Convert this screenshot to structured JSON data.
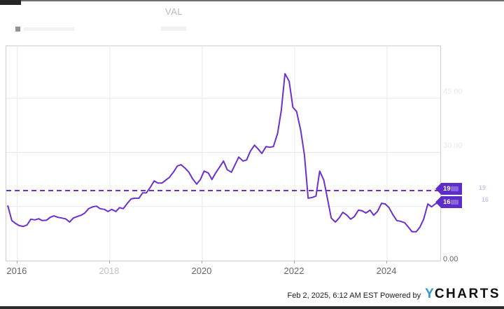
{
  "header": {
    "val_column_label": "VAL"
  },
  "axes": {
    "y_ticks": [
      {
        "label": "45.00",
        "value": 45,
        "faded": true
      },
      {
        "label": "30.00",
        "value": 30,
        "faded": true
      },
      {
        "label": "0.00",
        "value": 0,
        "faded": false
      }
    ],
    "x_ticks": [
      {
        "label": "2016",
        "year": 2016,
        "faded": false
      },
      {
        "label": "2018",
        "year": 2018,
        "faded": true
      },
      {
        "label": "2020",
        "year": 2020,
        "faded": false
      },
      {
        "label": "2022",
        "year": 2022,
        "faded": false
      },
      {
        "label": "2024",
        "year": 2024,
        "faded": false
      }
    ]
  },
  "badges": {
    "mean": {
      "text": "19",
      "value": 19.4
    },
    "last": {
      "text": "16",
      "value": 16.1
    }
  },
  "colors": {
    "line": "#6a30d0",
    "mean_line": "#6a30d0",
    "badge": "#5e2cc9",
    "grid": "#e8e8e8",
    "plot_border": "#cfcfcf",
    "axis_text": "#666666",
    "ycharts_blue": "#2f97d4"
  },
  "footer": {
    "timestamp": "Feb 2, 2025, 6:12 AM EST",
    "powered_by": "Powered by",
    "logo_y": "Y",
    "logo_rest": "CHARTS"
  },
  "chart_data": {
    "type": "line",
    "title": "",
    "xlabel": "",
    "ylabel": "",
    "x_domain": [
      2015.76,
      2025.15
    ],
    "y_domain": [
      0,
      59.4
    ],
    "x_gridline_years": [
      2016,
      2018,
      2020,
      2022,
      2024
    ],
    "y_gridline_values": [
      15,
      30,
      45
    ],
    "mean_line_value": 19.4,
    "grid": true,
    "legend_position": "top-left",
    "points": [
      [
        2015.79,
        15.3
      ],
      [
        2015.88,
        11.1
      ],
      [
        2015.96,
        10.3
      ],
      [
        2016.04,
        9.7
      ],
      [
        2016.13,
        9.5
      ],
      [
        2016.21,
        9.9
      ],
      [
        2016.29,
        11.5
      ],
      [
        2016.38,
        11.3
      ],
      [
        2016.46,
        11.6
      ],
      [
        2016.54,
        11.1
      ],
      [
        2016.63,
        11.2
      ],
      [
        2016.71,
        12.0
      ],
      [
        2016.79,
        12.4
      ],
      [
        2016.88,
        12.0
      ],
      [
        2016.96,
        11.8
      ],
      [
        2017.04,
        11.6
      ],
      [
        2017.13,
        10.7
      ],
      [
        2017.21,
        11.8
      ],
      [
        2017.29,
        12.2
      ],
      [
        2017.38,
        12.6
      ],
      [
        2017.46,
        13.2
      ],
      [
        2017.54,
        14.4
      ],
      [
        2017.63,
        14.9
      ],
      [
        2017.71,
        15.1
      ],
      [
        2017.79,
        14.4
      ],
      [
        2017.88,
        14.2
      ],
      [
        2017.96,
        13.6
      ],
      [
        2018.04,
        14.2
      ],
      [
        2018.13,
        13.6
      ],
      [
        2018.21,
        14.7
      ],
      [
        2018.29,
        14.4
      ],
      [
        2018.38,
        15.9
      ],
      [
        2018.46,
        17.1
      ],
      [
        2018.54,
        17.3
      ],
      [
        2018.63,
        17.3
      ],
      [
        2018.71,
        18.8
      ],
      [
        2018.79,
        18.8
      ],
      [
        2018.88,
        20.4
      ],
      [
        2018.96,
        22.1
      ],
      [
        2019.04,
        21.5
      ],
      [
        2019.13,
        21.5
      ],
      [
        2019.21,
        22.3
      ],
      [
        2019.29,
        23.1
      ],
      [
        2019.38,
        24.6
      ],
      [
        2019.46,
        26.2
      ],
      [
        2019.54,
        26.6
      ],
      [
        2019.63,
        25.6
      ],
      [
        2019.71,
        24.5
      ],
      [
        2019.79,
        22.7
      ],
      [
        2019.88,
        21.2
      ],
      [
        2019.96,
        22.5
      ],
      [
        2020.04,
        24.8
      ],
      [
        2020.13,
        24.3
      ],
      [
        2020.21,
        22.5
      ],
      [
        2020.29,
        24.3
      ],
      [
        2020.38,
        26.0
      ],
      [
        2020.46,
        27.6
      ],
      [
        2020.54,
        25.2
      ],
      [
        2020.63,
        24.5
      ],
      [
        2020.71,
        26.6
      ],
      [
        2020.79,
        28.7
      ],
      [
        2020.88,
        27.6
      ],
      [
        2020.96,
        27.9
      ],
      [
        2021.04,
        30.3
      ],
      [
        2021.13,
        32.0
      ],
      [
        2021.21,
        30.9
      ],
      [
        2021.29,
        29.7
      ],
      [
        2021.38,
        31.6
      ],
      [
        2021.46,
        31.4
      ],
      [
        2021.54,
        31.6
      ],
      [
        2021.63,
        35.3
      ],
      [
        2021.71,
        41.7
      ],
      [
        2021.79,
        51.8
      ],
      [
        2021.88,
        49.7
      ],
      [
        2021.96,
        42.5
      ],
      [
        2022.04,
        41.3
      ],
      [
        2022.13,
        36.1
      ],
      [
        2022.21,
        29.3
      ],
      [
        2022.29,
        17.3
      ],
      [
        2022.38,
        17.5
      ],
      [
        2022.46,
        17.9
      ],
      [
        2022.54,
        24.8
      ],
      [
        2022.63,
        22.3
      ],
      [
        2022.71,
        17.1
      ],
      [
        2022.79,
        11.8
      ],
      [
        2022.88,
        10.7
      ],
      [
        2022.96,
        11.8
      ],
      [
        2023.04,
        13.4
      ],
      [
        2023.13,
        12.6
      ],
      [
        2023.21,
        11.5
      ],
      [
        2023.29,
        12.2
      ],
      [
        2023.38,
        14.0
      ],
      [
        2023.46,
        13.8
      ],
      [
        2023.54,
        13.2
      ],
      [
        2023.63,
        14.0
      ],
      [
        2023.71,
        12.6
      ],
      [
        2023.79,
        13.6
      ],
      [
        2023.88,
        15.9
      ],
      [
        2023.96,
        15.7
      ],
      [
        2024.04,
        14.7
      ],
      [
        2024.13,
        12.6
      ],
      [
        2024.21,
        11.1
      ],
      [
        2024.29,
        10.9
      ],
      [
        2024.38,
        10.5
      ],
      [
        2024.46,
        9.3
      ],
      [
        2024.54,
        8.0
      ],
      [
        2024.63,
        8.0
      ],
      [
        2024.71,
        9.3
      ],
      [
        2024.79,
        11.5
      ],
      [
        2024.88,
        15.7
      ],
      [
        2024.96,
        14.9
      ],
      [
        2025.04,
        15.7
      ],
      [
        2025.12,
        16.1
      ]
    ]
  }
}
